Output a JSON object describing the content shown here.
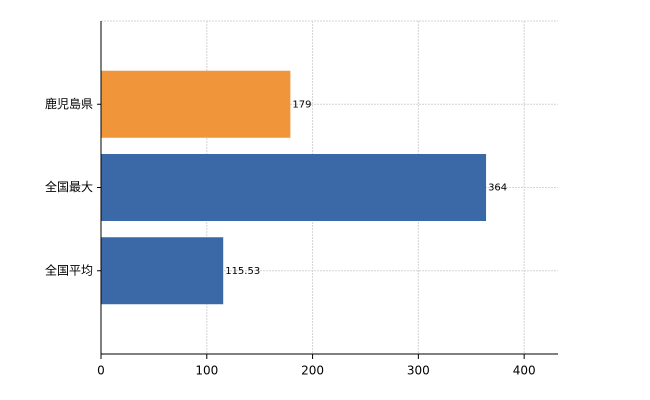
{
  "chart_data": {
    "type": "barh",
    "categories": [
      "鹿児島県",
      "全国最大",
      "全国平均"
    ],
    "values": [
      179,
      364,
      115.53
    ],
    "colors": [
      "#f0953a",
      "#3b69a7",
      "#3b69a7"
    ],
    "xlim": [
      0,
      432
    ],
    "xticks": [
      0,
      100,
      200,
      300,
      400
    ],
    "grid": true
  }
}
